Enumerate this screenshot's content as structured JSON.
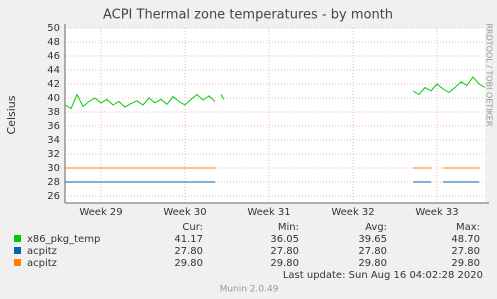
{
  "chart_data": {
    "type": "line",
    "title": "ACPI Thermal zone temperatures - by month",
    "y_label": "Celsius",
    "watermark": "RRDTOOL / TOBI OETIKER",
    "x": [
      0,
      0.5,
      1,
      1.5,
      2,
      2.5,
      3,
      3.5,
      4,
      4.5,
      5,
      5.5,
      6,
      6.5,
      7,
      7.5,
      8,
      8.5,
      9,
      9.5,
      10,
      10.5,
      11,
      11.5,
      12,
      12.5,
      12.75,
      13,
      13.25,
      20,
      29,
      29.5,
      30,
      30.5,
      31,
      31.5,
      32,
      32.5,
      33,
      33.5,
      34,
      34.5,
      35
    ],
    "xlim": [
      0,
      35
    ],
    "xticks": [
      {
        "value": 3,
        "label": "Week 29"
      },
      {
        "value": 10,
        "label": "Week 30"
      },
      {
        "value": 17,
        "label": "Week 31"
      },
      {
        "value": 24,
        "label": "Week 32"
      },
      {
        "value": 31,
        "label": "Week 33"
      }
    ],
    "ylim": [
      25,
      50
    ],
    "yticks": [
      26,
      28,
      30,
      32,
      34,
      36,
      38,
      40,
      42,
      44,
      46,
      48,
      50
    ],
    "grid": true,
    "stat_headers": [
      "Cur:",
      "Min:",
      "Avg:",
      "Max:"
    ],
    "series": [
      {
        "name": "x86_pkg_temp",
        "color": "#00cc00",
        "stats": [
          "41.17",
          "36.05",
          "39.65",
          "48.70"
        ],
        "values": [
          39,
          38.5,
          40.5,
          38.8,
          39.5,
          40,
          39.3,
          39.8,
          39,
          39.5,
          38.7,
          39.2,
          39.6,
          39,
          40,
          39.3,
          39.8,
          39.1,
          40.2,
          39.5,
          39,
          39.8,
          40.5,
          39.7,
          40.3,
          39.5,
          null,
          40.5,
          39.8,
          null,
          41,
          40.5,
          41.5,
          41,
          42,
          41.3,
          40.8,
          41.5,
          42.3,
          41.8,
          43,
          42,
          41.5
        ]
      },
      {
        "name": "acpitz",
        "color": "#0066b3",
        "stats": [
          "27.80",
          "27.80",
          "27.80",
          "27.80"
        ],
        "values": [
          28,
          28,
          28,
          28,
          28,
          28,
          28,
          28,
          28,
          28,
          28,
          28,
          28,
          28,
          28,
          28,
          28,
          28,
          28,
          28,
          28,
          28,
          28,
          28,
          28,
          28,
          null,
          null,
          null,
          null,
          28,
          28,
          28,
          28,
          null,
          28,
          28,
          28,
          28,
          28,
          28,
          28,
          null
        ]
      },
      {
        "name": "acpitz",
        "color": "#ff8000",
        "stats": [
          "29.80",
          "29.80",
          "29.80",
          "29.80"
        ],
        "values": [
          30,
          30,
          30,
          30,
          30,
          30,
          30,
          30,
          30,
          30,
          30,
          30,
          30,
          30,
          30,
          30,
          30,
          30,
          30,
          30,
          30,
          30,
          30,
          30,
          30,
          30,
          null,
          null,
          null,
          null,
          30,
          30,
          30,
          30,
          null,
          30,
          30,
          30,
          30,
          30,
          30,
          30,
          null
        ]
      }
    ],
    "last_update": "Last update: Sun Aug 16 04:02:28 2020",
    "footer": "Munin 2.0.49"
  }
}
